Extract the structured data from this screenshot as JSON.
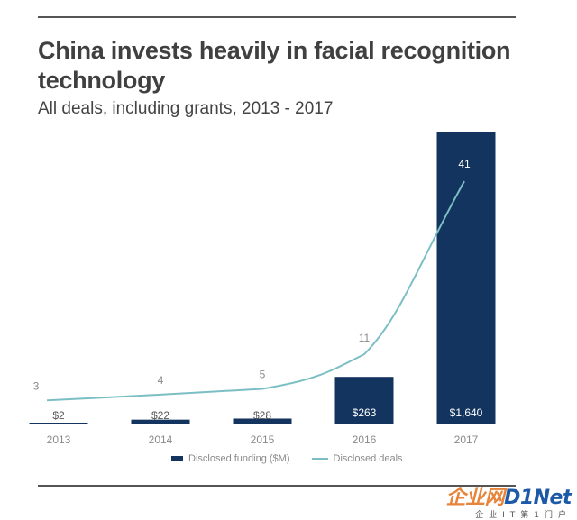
{
  "header": {
    "title": "China invests heavily in facial recognition technology",
    "subtitle": "All deals, including grants, 2013 - 2017"
  },
  "chart_data": {
    "type": "bar",
    "title": "China invests heavily in facial recognition technology",
    "subtitle": "All deals, including grants, 2013 - 2017",
    "categories": [
      "2013",
      "2014",
      "2015",
      "2016",
      "2017"
    ],
    "series": [
      {
        "name": "Disclosed funding ($M)",
        "type": "bar",
        "values": [
          2,
          22,
          28,
          263,
          1640
        ],
        "labels": [
          "$2",
          "$22",
          "$28",
          "$263",
          "$1,640"
        ],
        "color": "#13345e"
      },
      {
        "name": "Disclosed deals",
        "type": "line",
        "values": [
          3,
          4,
          5,
          11,
          41
        ],
        "labels": [
          "3",
          "4",
          "5",
          "11",
          "41"
        ],
        "color": "#7bbfc4"
      }
    ],
    "legend": "bottom",
    "grid": false
  },
  "watermark": {
    "brand_a": "企业网",
    "brand_b": "D1Net",
    "sub": "企业IT第1门户"
  }
}
